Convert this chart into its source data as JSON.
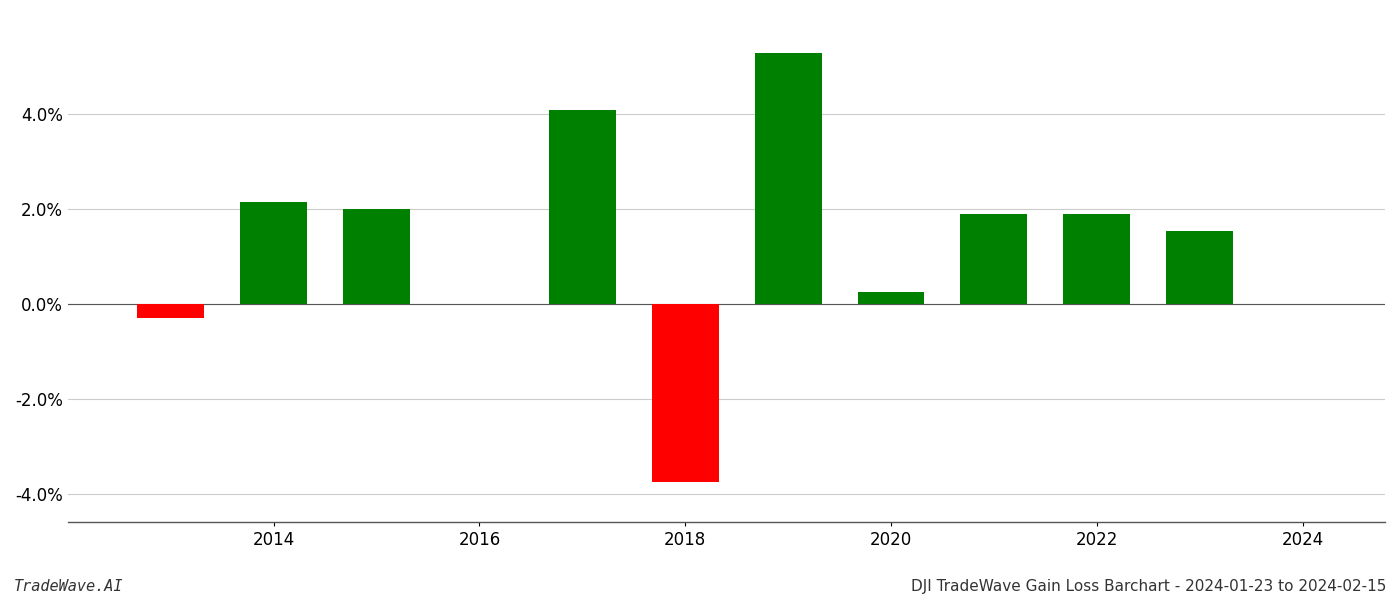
{
  "years": [
    2013,
    2014,
    2015,
    2017,
    2018,
    2019,
    2020,
    2021,
    2022,
    2023
  ],
  "values": [
    -0.3,
    2.15,
    2.0,
    4.1,
    -3.75,
    5.3,
    0.25,
    1.9,
    1.9,
    1.55
  ],
  "colors": [
    "#ff0000",
    "#008000",
    "#008000",
    "#008000",
    "#ff0000",
    "#008000",
    "#008000",
    "#008000",
    "#008000",
    "#008000"
  ],
  "title": "DJI TradeWave Gain Loss Barchart - 2024-01-23 to 2024-02-15",
  "watermark": "TradeWave.AI",
  "xlim": [
    2012.0,
    2024.8
  ],
  "ylim": [
    -4.6,
    6.1
  ],
  "yticks": [
    -4.0,
    -2.0,
    0.0,
    2.0,
    4.0
  ],
  "xtick_positions": [
    2014,
    2016,
    2018,
    2020,
    2022,
    2024
  ],
  "bar_width": 0.65,
  "background_color": "#ffffff",
  "grid_color": "#cccccc",
  "tick_fontsize": 12,
  "title_fontsize": 11,
  "watermark_fontsize": 11
}
